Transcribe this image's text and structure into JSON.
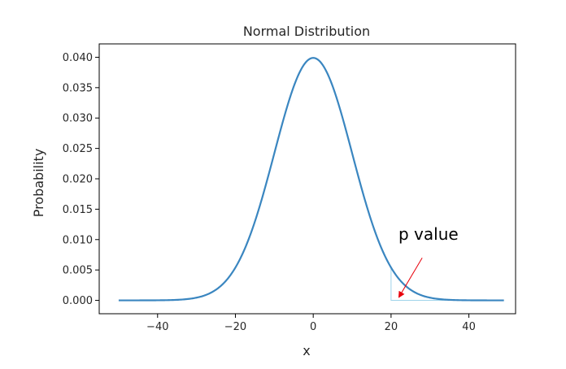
{
  "chart_data": {
    "type": "line",
    "title": "Normal Distribution",
    "xlabel": "x",
    "ylabel": "Probability",
    "xlim": [
      -55,
      52
    ],
    "ylim": [
      -0.0022,
      0.0422
    ],
    "xticks": [
      -40,
      -20,
      0,
      20,
      40
    ],
    "xtick_labels": [
      "−40",
      "−20",
      "0",
      "20",
      "40"
    ],
    "yticks": [
      0.0,
      0.005,
      0.01,
      0.015,
      0.02,
      0.025,
      0.03,
      0.035,
      0.04
    ],
    "ytick_labels": [
      "0.000",
      "0.005",
      "0.010",
      "0.015",
      "0.020",
      "0.025",
      "0.030",
      "0.035",
      "0.040"
    ],
    "grid": false,
    "series": [
      {
        "distribution": "normal",
        "mean": 0,
        "std": 10,
        "x_start": -50,
        "x_end": 49,
        "color": "#3a86c0"
      }
    ],
    "shaded_region": {
      "x_from": 20,
      "x_to": 49,
      "edge_color": "#9fd3ea"
    },
    "annotation": {
      "text": "p value",
      "arrow_color": "#e8000b",
      "arrow_target": {
        "x": 22,
        "y": 0.0005
      },
      "arrow_tail": {
        "x": 28,
        "y": 0.007
      }
    }
  }
}
